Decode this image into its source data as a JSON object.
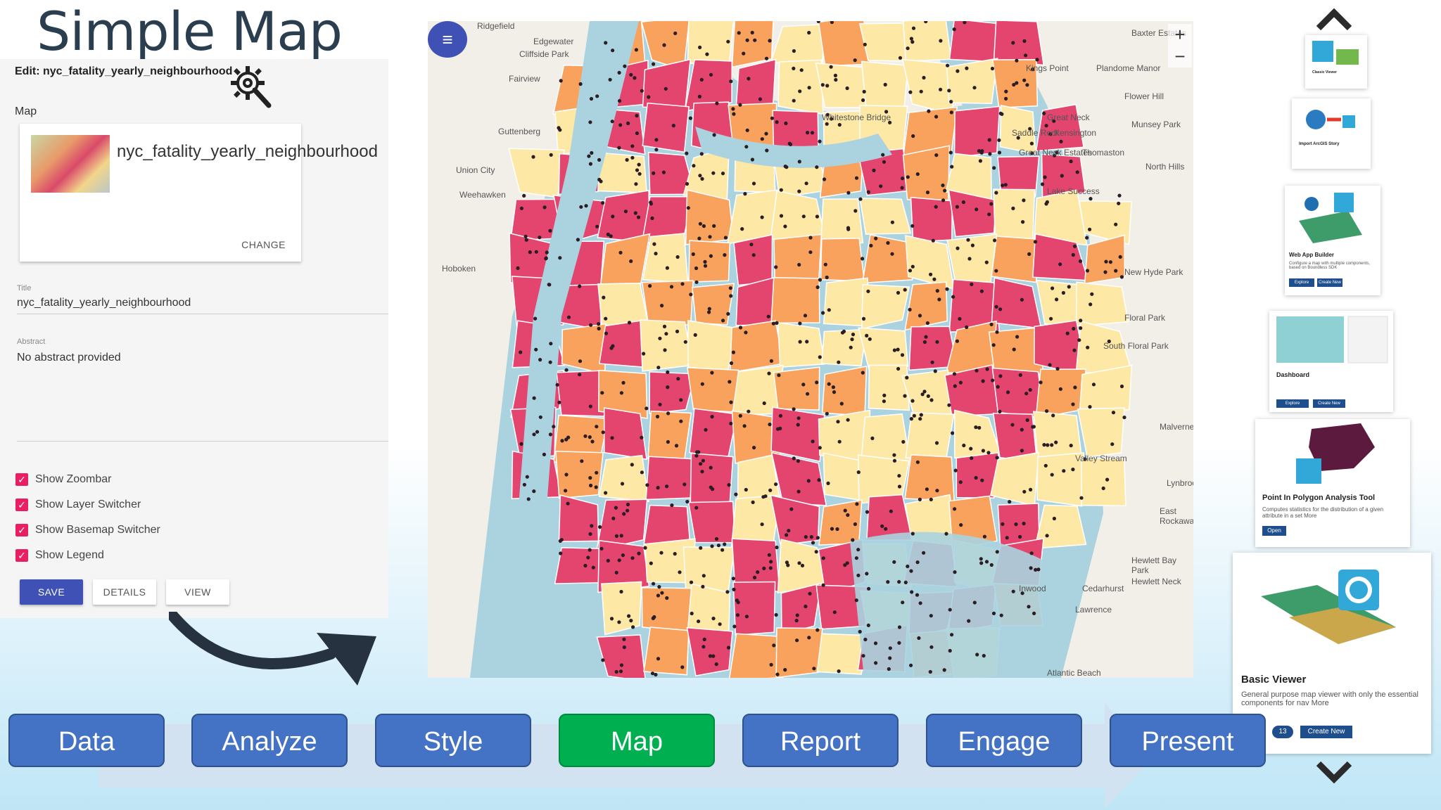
{
  "slide": {
    "title": "Simple Map"
  },
  "editor": {
    "edit_title": "Edit: nyc_fatality_yearly_neighbourhood",
    "map_section": "Map",
    "map_card": {
      "name": "nyc_fatality_yearly_neighbourhood",
      "change_label": "CHANGE"
    },
    "title_caption": "Title",
    "title_value": "nyc_fatality_yearly_neighbourhood",
    "abstract_caption": "Abstract",
    "abstract_value": "No abstract provided",
    "options": [
      {
        "label": "Show Zoombar",
        "checked": true
      },
      {
        "label": "Show Layer Switcher",
        "checked": true
      },
      {
        "label": "Show Basemap Switcher",
        "checked": true
      },
      {
        "label": "Show Legend",
        "checked": true
      }
    ],
    "buttons": {
      "save": "SAVE",
      "details": "DETAILS",
      "view": "VIEW"
    }
  },
  "map": {
    "zoom_in": "+",
    "zoom_out": "−",
    "place_labels": [
      "Ridgefield",
      "Edgewater",
      "Cliffside Park",
      "Fairview",
      "Guttenberg",
      "Union City",
      "Weehawken",
      "Hoboken",
      "Kings Point",
      "Plandome Manor",
      "Great Neck",
      "Saddle Rock",
      "Kensington",
      "Great Neck Estates",
      "Thomaston",
      "Flower Hill",
      "Munsey Park",
      "Lake Success",
      "North Hills",
      "New Hyde Park",
      "Floral Park",
      "South Floral Park",
      "Valley Stream",
      "Malverne",
      "Lynbrook",
      "East Rockaway",
      "Hewlett Bay Park",
      "Hewlett Neck",
      "Cedarhurst",
      "Lawrence",
      "Inwood",
      "Atlantic Beach",
      "Baxter Estates",
      "Whitestone Bridge"
    ],
    "colors": {
      "water": "#aad3df",
      "land": "#f2efe9",
      "low": "#fde8a6",
      "mid": "#f8a25e",
      "high": "#e4456f",
      "points": "#2b1d24"
    }
  },
  "apps": [
    {
      "name": "Classic Viewer",
      "icon": "map-viewer-icon"
    },
    {
      "name": "Import ArcGIS Story",
      "icon": "globe-import-icon"
    },
    {
      "name": "Web App Builder",
      "desc": "Configure a map with multiple components, based on Boundless SDK",
      "buttons": [
        "Explore",
        "Create New"
      ],
      "icon": "app-builder-icon"
    },
    {
      "name": "Dashboard",
      "buttons": [
        "Explore",
        "Create New"
      ],
      "icon": "dashboard-icon"
    },
    {
      "name": "Point In Polygon Analysis Tool",
      "desc": "Computes statistics for the distribution of a given attribute in a set More",
      "buttons": [
        "Open"
      ],
      "icon": "polygon-analysis-icon"
    },
    {
      "name": "Basic Viewer",
      "desc": "General purpose map viewer with only the essential components for nav More",
      "badge": "13",
      "buttons": [
        "Create New"
      ],
      "icon": "basic-viewer-icon"
    }
  ],
  "workflow": {
    "steps": [
      "Data",
      "Analyze",
      "Style",
      "Map",
      "Report",
      "Engage",
      "Present"
    ],
    "active": "Map",
    "colors": {
      "step": "#4472c4",
      "active": "#00b050"
    }
  }
}
